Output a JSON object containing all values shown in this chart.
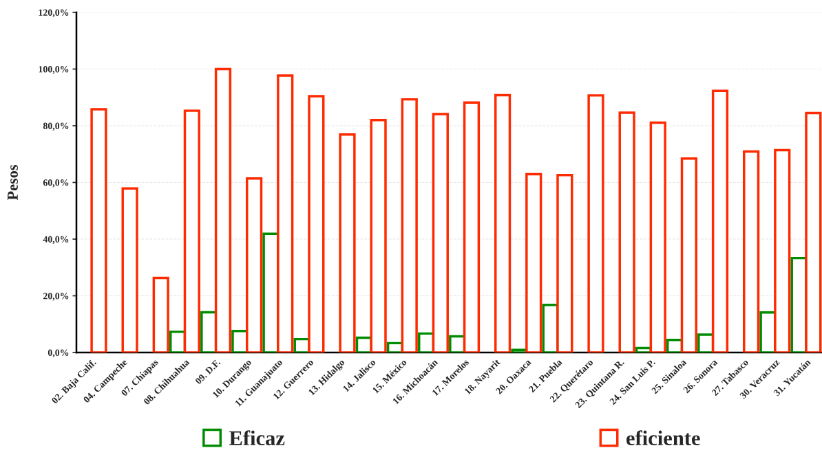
{
  "chart_data": {
    "type": "bar",
    "ylabel": "Pesos",
    "categories": [
      "02. Baja Calif.",
      "04. Campeche",
      "07. Chiapas",
      "08. Chihuahua",
      "09. D.F.",
      "10. Durango",
      "11. Guanajuato",
      "12. Guerrero",
      "13. Hidalgo",
      "14. Jalisco",
      "15. México",
      "16. Michoacán",
      "17. Morelos",
      "18. Nayarit",
      "20. Oaxaca",
      "21. Puebla",
      "22. Querétaro",
      "23. Quintana R.",
      "24. San Luis P.",
      "25. Sinaloa",
      "26. Sonora",
      "27. Tabasco",
      "30. Veracruz",
      "31. Yucatán"
    ],
    "series": [
      {
        "name": "Eficaz",
        "color": "#008c00",
        "values": [
          null,
          null,
          null,
          7.3,
          14.2,
          7.6,
          41.9,
          4.7,
          null,
          5.2,
          3.3,
          6.7,
          5.7,
          null,
          0.9,
          16.8,
          null,
          null,
          1.6,
          4.4,
          6.3,
          null,
          14.1,
          33.3
        ]
      },
      {
        "name": "eficiente",
        "color": "#ff2a00",
        "values": [
          85.8,
          57.9,
          26.3,
          85.3,
          100.0,
          61.4,
          97.7,
          90.4,
          76.9,
          82.0,
          89.3,
          84.1,
          88.2,
          90.8,
          62.9,
          62.6,
          90.7,
          84.6,
          81.1,
          68.4,
          92.3,
          70.9,
          71.4,
          84.5
        ]
      }
    ],
    "ylim": [
      0,
      120
    ],
    "yticks": [
      {
        "value": 0,
        "label": "0,0%"
      },
      {
        "value": 20,
        "label": "20,0%"
      },
      {
        "value": 40,
        "label": "40,0%"
      },
      {
        "value": 60,
        "label": "60,0%"
      },
      {
        "value": 80,
        "label": "80,0%"
      },
      {
        "value": 100,
        "label": "100,0%"
      },
      {
        "value": 120,
        "label": "120,0%"
      }
    ],
    "grid": "y",
    "legend": "bottom"
  }
}
